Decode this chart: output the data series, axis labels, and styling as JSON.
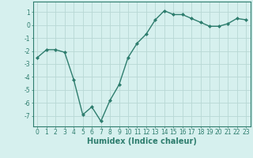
{
  "x": [
    0,
    1,
    2,
    3,
    4,
    5,
    6,
    7,
    8,
    9,
    10,
    11,
    12,
    13,
    14,
    15,
    16,
    17,
    18,
    19,
    20,
    21,
    22,
    23
  ],
  "y": [
    -2.5,
    -1.9,
    -1.9,
    -2.1,
    -4.2,
    -6.9,
    -6.3,
    -7.4,
    -5.8,
    -4.6,
    -2.5,
    -1.4,
    -0.7,
    0.4,
    1.1,
    0.8,
    0.8,
    0.5,
    0.2,
    -0.1,
    -0.1,
    0.1,
    0.5,
    0.4
  ],
  "xlabel": "Humidex (Indice chaleur)",
  "line_color": "#2e7d6e",
  "marker": "D",
  "marker_size": 2.0,
  "bg_color": "#d6f0ee",
  "grid_color": "#b8d8d4",
  "xlim": [
    -0.5,
    23.5
  ],
  "ylim": [
    -7.8,
    1.8
  ],
  "yticks": [
    1,
    0,
    -1,
    -2,
    -3,
    -4,
    -5,
    -6,
    -7
  ],
  "xticks": [
    0,
    1,
    2,
    3,
    4,
    5,
    6,
    7,
    8,
    9,
    10,
    11,
    12,
    13,
    14,
    15,
    16,
    17,
    18,
    19,
    20,
    21,
    22,
    23
  ],
  "tick_label_size": 5.5,
  "xlabel_size": 7.0,
  "linewidth": 1.0
}
